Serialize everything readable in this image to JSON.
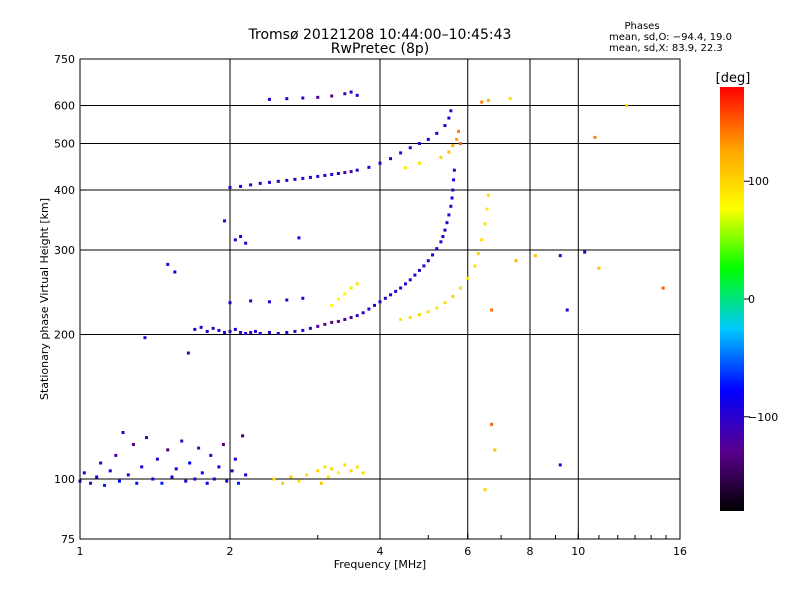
{
  "header": {
    "title": "Tromsø 20121208 10:44:00–10:45:43",
    "subtitle": "RwPretec (8p)",
    "stats_heading": "Phases",
    "stats_o": "mean, sd,O: −94.4, 19.0",
    "stats_x": "mean, sd,X:  83.9, 22.3"
  },
  "chart_data": {
    "type": "scatter",
    "title": "Tromsø 20121208 10:44:00–10:45:43",
    "subtitle": "RwPretec (8p)",
    "xlabel": "Frequency [MHz]",
    "ylabel": "Stationary phase Virtual Height [km]",
    "x_scale": "log",
    "y_scale": "log",
    "xlim": [
      1,
      16
    ],
    "ylim": [
      75,
      750
    ],
    "x_ticks": [
      "1",
      "2",
      "4",
      "6",
      "8",
      "10",
      "16"
    ],
    "x_tick_values": [
      1,
      2,
      4,
      6,
      8,
      10,
      16
    ],
    "x_gridlines": [
      2,
      4,
      6,
      8,
      10
    ],
    "y_ticks": [
      "75",
      "100",
      "200",
      "300",
      "400",
      "500",
      "600",
      "750"
    ],
    "y_tick_values": [
      75,
      100,
      200,
      300,
      400,
      500,
      600,
      750
    ],
    "y_gridlines": [
      100,
      200,
      300,
      400,
      500,
      600
    ],
    "grid": true,
    "colorbar": {
      "label": "[deg]",
      "range": [
        -180,
        180
      ],
      "ticks": [
        "100",
        "0",
        "−100"
      ],
      "tick_values": [
        100,
        0,
        -100
      ],
      "colors": [
        "#000000",
        "#5a0090",
        "#0000ff",
        "#00c8ff",
        "#00ff00",
        "#ffff00",
        "#ffa000",
        "#ff0000"
      ]
    },
    "series": [
      {
        "mode": "O",
        "phase_mean": -94.4,
        "phase_sd": 19.0,
        "points": [
          [
            1.0,
            99,
            -95
          ],
          [
            1.02,
            103,
            -90
          ],
          [
            1.05,
            98,
            -110
          ],
          [
            1.08,
            101,
            -85
          ],
          [
            1.1,
            108,
            -100
          ],
          [
            1.12,
            97,
            -70
          ],
          [
            1.15,
            104,
            -95
          ],
          [
            1.18,
            112,
            -120
          ],
          [
            1.2,
            99,
            -80
          ],
          [
            1.22,
            125,
            -110
          ],
          [
            1.25,
            102,
            -90
          ],
          [
            1.28,
            118,
            -130
          ],
          [
            1.3,
            98,
            -75
          ],
          [
            1.33,
            106,
            -95
          ],
          [
            1.36,
            122,
            -115
          ],
          [
            1.4,
            100,
            -88
          ],
          [
            1.43,
            110,
            -100
          ],
          [
            1.46,
            98,
            -72
          ],
          [
            1.5,
            115,
            -140
          ],
          [
            1.53,
            101,
            -92
          ],
          [
            1.56,
            105,
            -85
          ],
          [
            1.6,
            120,
            -110
          ],
          [
            1.63,
            99,
            -95
          ],
          [
            1.66,
            108,
            -78
          ],
          [
            1.7,
            100,
            -100
          ],
          [
            1.73,
            116,
            -125
          ],
          [
            1.76,
            103,
            -90
          ],
          [
            1.8,
            98,
            -80
          ],
          [
            1.83,
            112,
            -105
          ],
          [
            1.86,
            100,
            -95
          ],
          [
            1.9,
            106,
            -85
          ],
          [
            1.94,
            118,
            -130
          ],
          [
            1.97,
            99,
            -92
          ],
          [
            2.02,
            104,
            -100
          ],
          [
            2.05,
            110,
            -88
          ],
          [
            2.08,
            98,
            -70
          ],
          [
            2.12,
            123,
            -145
          ],
          [
            2.15,
            102,
            -95
          ],
          [
            1.7,
            205,
            -100
          ],
          [
            1.75,
            207,
            -105
          ],
          [
            1.8,
            203,
            -98
          ],
          [
            1.85,
            206,
            -110
          ],
          [
            1.9,
            204,
            -95
          ],
          [
            1.95,
            202,
            -100
          ],
          [
            2.0,
            203,
            -108
          ],
          [
            2.05,
            205,
            -96
          ],
          [
            2.1,
            202,
            -102
          ],
          [
            2.15,
            201,
            -100
          ],
          [
            2.2,
            202,
            -110
          ],
          [
            2.25,
            203,
            -98
          ],
          [
            2.3,
            201,
            -100
          ],
          [
            2.4,
            202,
            -105
          ],
          [
            2.5,
            201,
            -100
          ],
          [
            2.6,
            202,
            -98
          ],
          [
            2.7,
            203,
            -110
          ],
          [
            2.8,
            204,
            -100
          ],
          [
            2.9,
            206,
            -105
          ],
          [
            3.0,
            208,
            -120
          ],
          [
            3.1,
            210,
            -130
          ],
          [
            3.2,
            212,
            -135
          ],
          [
            3.3,
            213,
            -125
          ],
          [
            3.4,
            215,
            -120
          ],
          [
            3.5,
            217,
            -115
          ],
          [
            3.6,
            219,
            -110
          ],
          [
            3.7,
            222,
            -105
          ],
          [
            3.8,
            226,
            -100
          ],
          [
            3.9,
            230,
            -100
          ],
          [
            4.0,
            234,
            -95
          ],
          [
            4.1,
            238,
            -100
          ],
          [
            4.2,
            242,
            -105
          ],
          [
            4.3,
            246,
            -100
          ],
          [
            4.4,
            250,
            -95
          ],
          [
            4.5,
            255,
            -100
          ],
          [
            4.6,
            260,
            -98
          ],
          [
            4.7,
            266,
            -100
          ],
          [
            4.8,
            272,
            -105
          ],
          [
            4.9,
            278,
            -100
          ],
          [
            5.0,
            285,
            -95
          ],
          [
            5.1,
            293,
            -100
          ],
          [
            5.2,
            302,
            -98
          ],
          [
            5.3,
            312,
            -102
          ],
          [
            5.35,
            320,
            -100
          ],
          [
            5.4,
            330,
            -95
          ],
          [
            5.45,
            342,
            -100
          ],
          [
            5.5,
            355,
            -105
          ],
          [
            5.55,
            370,
            -100
          ],
          [
            5.58,
            385,
            -95
          ],
          [
            5.6,
            400,
            -100
          ],
          [
            5.62,
            420,
            -98
          ],
          [
            5.64,
            440,
            -102
          ],
          [
            2.0,
            233,
            -95
          ],
          [
            2.2,
            235,
            -100
          ],
          [
            2.4,
            234,
            -98
          ],
          [
            2.6,
            236,
            -105
          ],
          [
            2.8,
            238,
            -100
          ],
          [
            2.0,
            405,
            -100
          ],
          [
            2.1,
            407,
            -98
          ],
          [
            2.2,
            410,
            -105
          ],
          [
            2.3,
            413,
            -100
          ],
          [
            2.4,
            415,
            -95
          ],
          [
            2.5,
            417,
            -100
          ],
          [
            2.6,
            419,
            -105
          ],
          [
            2.7,
            421,
            -100
          ],
          [
            2.8,
            423,
            -98
          ],
          [
            2.9,
            425,
            -100
          ],
          [
            3.0,
            427,
            -105
          ],
          [
            3.1,
            429,
            -100
          ],
          [
            3.2,
            431,
            -98
          ],
          [
            3.3,
            433,
            -100
          ],
          [
            3.4,
            435,
            -110
          ],
          [
            3.5,
            437,
            -120
          ],
          [
            3.6,
            440,
            -100
          ],
          [
            3.8,
            446,
            -100
          ],
          [
            4.0,
            455,
            -98
          ],
          [
            4.2,
            465,
            -100
          ],
          [
            4.4,
            478,
            -105
          ],
          [
            4.6,
            490,
            -100
          ],
          [
            4.8,
            500,
            -98
          ],
          [
            5.0,
            510,
            -100
          ],
          [
            5.2,
            525,
            -95
          ],
          [
            5.4,
            545,
            -100
          ],
          [
            5.5,
            565,
            -105
          ],
          [
            5.55,
            585,
            -100
          ],
          [
            2.4,
            618,
            -100
          ],
          [
            2.6,
            620,
            -98
          ],
          [
            2.8,
            622,
            -105
          ],
          [
            3.0,
            624,
            -120
          ],
          [
            3.2,
            628,
            -130
          ],
          [
            3.4,
            635,
            -115
          ],
          [
            3.5,
            640,
            -100
          ],
          [
            3.6,
            630,
            -95
          ],
          [
            2.05,
            315,
            -100
          ],
          [
            2.1,
            320,
            -95
          ],
          [
            2.15,
            310,
            -100
          ],
          [
            1.95,
            345,
            -100
          ],
          [
            2.75,
            318,
            -90
          ],
          [
            1.65,
            183,
            -110
          ],
          [
            1.35,
            197,
            -100
          ],
          [
            1.5,
            280,
            -100
          ],
          [
            1.55,
            270,
            -95
          ],
          [
            9.2,
            292,
            -100
          ],
          [
            10.3,
            297,
            -100
          ],
          [
            9.5,
            225,
            -95
          ],
          [
            9.2,
            107,
            -100
          ]
        ]
      },
      {
        "mode": "X",
        "phase_mean": 83.9,
        "phase_sd": 22.3,
        "points": [
          [
            2.45,
            100,
            95
          ],
          [
            2.55,
            98,
            100
          ],
          [
            2.65,
            101,
            105
          ],
          [
            2.75,
            99,
            90
          ],
          [
            2.85,
            102,
            95
          ],
          [
            3.0,
            104,
            100
          ],
          [
            3.05,
            98,
            110
          ],
          [
            3.1,
            106,
            95
          ],
          [
            3.15,
            101,
            90
          ],
          [
            3.2,
            105,
            100
          ],
          [
            3.3,
            103,
            85
          ],
          [
            3.4,
            107,
            95
          ],
          [
            3.5,
            104,
            100
          ],
          [
            3.6,
            106,
            90
          ],
          [
            3.7,
            103,
            95
          ],
          [
            3.2,
            230,
            75
          ],
          [
            3.3,
            237,
            80
          ],
          [
            3.4,
            243,
            85
          ],
          [
            3.5,
            250,
            90
          ],
          [
            3.6,
            255,
            95
          ],
          [
            4.4,
            215,
            90
          ],
          [
            4.6,
            217,
            95
          ],
          [
            4.8,
            220,
            100
          ],
          [
            5.0,
            223,
            95
          ],
          [
            5.2,
            227,
            90
          ],
          [
            5.4,
            233,
            95
          ],
          [
            5.6,
            240,
            100
          ],
          [
            5.8,
            250,
            95
          ],
          [
            6.0,
            262,
            90
          ],
          [
            6.2,
            278,
            95
          ],
          [
            6.3,
            295,
            100
          ],
          [
            6.4,
            315,
            95
          ],
          [
            6.5,
            340,
            90
          ],
          [
            6.55,
            365,
            85
          ],
          [
            6.6,
            390,
            95
          ],
          [
            4.5,
            445,
            90
          ],
          [
            4.8,
            455,
            95
          ],
          [
            5.3,
            468,
            100
          ],
          [
            5.5,
            480,
            110
          ],
          [
            5.6,
            495,
            120
          ],
          [
            5.7,
            510,
            130
          ],
          [
            5.75,
            530,
            140
          ],
          [
            5.8,
            500,
            150
          ],
          [
            6.4,
            610,
            140
          ],
          [
            6.6,
            615,
            120
          ],
          [
            7.3,
            620,
            95
          ],
          [
            7.5,
            285,
            120
          ],
          [
            8.2,
            292,
            110
          ],
          [
            10.8,
            515,
            140
          ],
          [
            12.5,
            600,
            100
          ],
          [
            14.8,
            250,
            150
          ],
          [
            6.7,
            225,
            145
          ],
          [
            6.5,
            95,
            100
          ],
          [
            6.8,
            115,
            110
          ],
          [
            6.7,
            130,
            150
          ],
          [
            11.0,
            275,
            110
          ]
        ]
      }
    ]
  }
}
